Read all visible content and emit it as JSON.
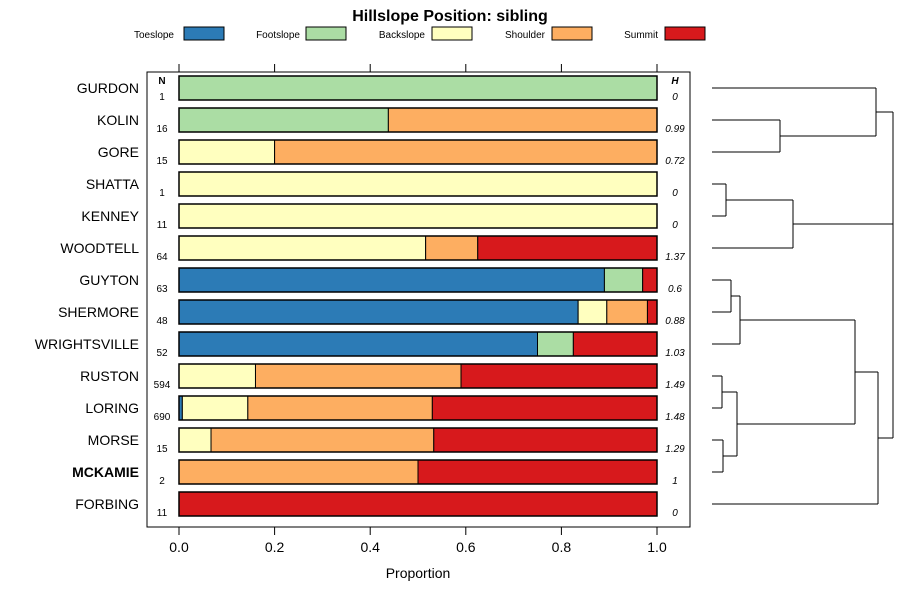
{
  "chart_data": {
    "type": "bar",
    "orientation": "horizontal",
    "stacked": true,
    "title": "Hillslope Position: sibling",
    "xlabel": "Proportion",
    "ylabel": "",
    "xlim": [
      0,
      1
    ],
    "x_ticks": [
      "0.0",
      "0.2",
      "0.4",
      "0.6",
      "0.8",
      "1.0"
    ],
    "n_header": "N",
    "h_header": "H",
    "series": [
      {
        "name": "Toeslope",
        "color": "#2c7bb6",
        "values": [
          0,
          0,
          0,
          0,
          0,
          0,
          0.89,
          0.835,
          0.75,
          0,
          0.007,
          0,
          0,
          0
        ]
      },
      {
        "name": "Footslope",
        "color": "#abdda4",
        "values": [
          1,
          0.438,
          0,
          0,
          0,
          0,
          0.08,
          0,
          0.075,
          0,
          0,
          0,
          0,
          0
        ]
      },
      {
        "name": "Backslope",
        "color": "#ffffbf",
        "values": [
          0,
          0,
          0.2,
          1,
          1,
          0.516,
          0,
          0.06,
          0,
          0.16,
          0.137,
          0.067,
          0,
          0
        ]
      },
      {
        "name": "Shoulder",
        "color": "#fdae61",
        "values": [
          0,
          0.562,
          0.8,
          0,
          0,
          0.109,
          0,
          0.085,
          0,
          0.43,
          0.386,
          0.466,
          0.5,
          0
        ]
      },
      {
        "name": "Summit",
        "color": "#d7191c",
        "values": [
          0,
          0,
          0,
          0,
          0,
          0.375,
          0.03,
          0.02,
          0.175,
          0.41,
          0.47,
          0.467,
          0.5,
          1
        ]
      }
    ],
    "categories": [
      "GURDON",
      "KOLIN",
      "GORE",
      "SHATTA",
      "KENNEY",
      "WOODTELL",
      "GUYTON",
      "SHERMORE",
      "WRIGHTSVILLE",
      "RUSTON",
      "LORING",
      "MORSE",
      "MCKAMIE",
      "FORBING"
    ],
    "bold_categories": [
      "MCKAMIE"
    ],
    "n_values": [
      "1",
      "16",
      "15",
      "1",
      "11",
      "64",
      "63",
      "48",
      "52",
      "594",
      "690",
      "15",
      "2",
      "11"
    ],
    "h_values": [
      "0",
      "0.99",
      "0.72",
      "0",
      "0",
      "1.37",
      "0.6",
      "0.88",
      "1.03",
      "1.49",
      "1.48",
      "1.29",
      "1",
      "0"
    ],
    "legend_position": "top",
    "dendrogram": "right"
  }
}
